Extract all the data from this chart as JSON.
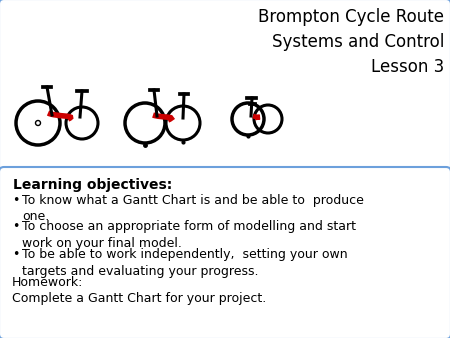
{
  "title_line1": "Brompton Cycle Route",
  "title_line2": "Systems and Control",
  "title_line3": "Lesson 3",
  "bg_color": "#ffffff",
  "top_box_border": "#6ca0dc",
  "bottom_box_border": "#6ca0dc",
  "learning_objectives_bold": "Learning objectives:",
  "bullet1": "To know what a Gantt Chart is and be able to  produce\none.",
  "bullet2": "To choose an appropriate form of modelling and start\nwork on your final model.",
  "bullet3": "To be able to work independently,  setting your own\ntargets and evaluating your progress.",
  "homework_label": "Homework:",
  "homework_text": "Complete a Gantt Chart for your project.",
  "title_fontsize": 12,
  "body_fontsize": 9,
  "bold_fontsize": 10
}
